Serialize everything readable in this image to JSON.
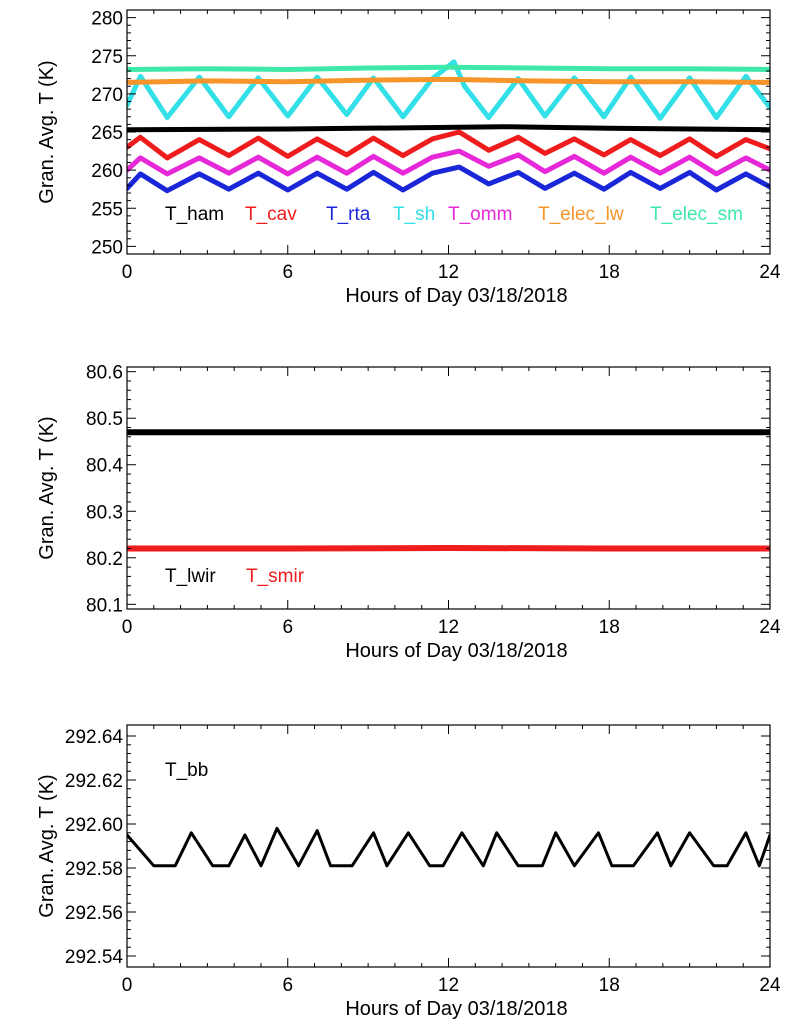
{
  "chart_data": [
    {
      "type": "line",
      "xlabel": "Hours of Day 03/18/2018",
      "ylabel": "Gran. Avg. T (K)",
      "xlim": [
        0,
        24
      ],
      "ylim": [
        249,
        281
      ],
      "xticks": [
        0,
        6,
        12,
        18,
        24
      ],
      "xtick_labels": [
        "0",
        "6",
        "12",
        "18",
        "24"
      ],
      "yticks": [
        250,
        255,
        260,
        265,
        270,
        275,
        280
      ],
      "ytick_labels": [
        "250",
        "255",
        "260",
        "265",
        "270",
        "275",
        "280"
      ],
      "legend_placement": "bottom inside plot, single row",
      "grid": false,
      "series": [
        {
          "name": "T_ham",
          "color": "#000000",
          "x": [
            0,
            6,
            12,
            14,
            18,
            24
          ],
          "y": [
            265.3,
            265.4,
            265.6,
            265.7,
            265.5,
            265.3
          ]
        },
        {
          "name": "T_cav",
          "color": "#ee1c1c",
          "x": [
            0,
            0.5,
            1.5,
            2.7,
            3.8,
            4.9,
            6.0,
            7.1,
            8.2,
            9.2,
            10.3,
            11.4,
            12.4,
            13.5,
            14.6,
            15.6,
            16.7,
            17.8,
            18.8,
            19.9,
            21.0,
            22.0,
            23.1,
            24
          ],
          "y": [
            263.0,
            264.3,
            261.6,
            264.0,
            261.9,
            264.2,
            261.8,
            264.1,
            262.0,
            264.2,
            261.9,
            264.1,
            265.0,
            262.6,
            264.3,
            262.2,
            264.1,
            262.0,
            264.0,
            261.9,
            264.1,
            261.8,
            264.0,
            262.8
          ]
        },
        {
          "name": "T_rta",
          "color": "#1a27d8",
          "x": [
            0,
            0.5,
            1.5,
            2.7,
            3.8,
            4.9,
            6.0,
            7.1,
            8.2,
            9.2,
            10.3,
            11.4,
            12.4,
            13.5,
            14.6,
            15.6,
            16.7,
            17.8,
            18.8,
            19.9,
            21.0,
            22.0,
            23.1,
            24
          ],
          "y": [
            257.6,
            259.5,
            257.3,
            259.5,
            257.5,
            259.6,
            257.4,
            259.6,
            257.5,
            259.7,
            257.4,
            259.6,
            260.4,
            258.2,
            259.7,
            257.6,
            259.6,
            257.5,
            259.7,
            257.6,
            259.7,
            257.4,
            259.5,
            257.8
          ]
        },
        {
          "name": "T_sh",
          "color": "#33e0e8",
          "x": [
            0,
            0.5,
            1.5,
            2.7,
            3.8,
            4.9,
            6.0,
            7.1,
            8.2,
            9.2,
            10.3,
            11.4,
            12.2,
            12.6,
            13.5,
            14.6,
            15.6,
            16.7,
            17.8,
            18.8,
            19.9,
            21.0,
            22.0,
            23.1,
            24
          ],
          "y": [
            268.5,
            272.3,
            266.9,
            272.2,
            267.0,
            272.1,
            267.1,
            272.2,
            267.3,
            272.1,
            267.0,
            272.0,
            274.2,
            271.0,
            266.9,
            272.0,
            267.1,
            272.1,
            267.0,
            272.2,
            266.8,
            272.1,
            266.9,
            272.3,
            268.2
          ]
        },
        {
          "name": "T_omm",
          "color": "#e628d8",
          "x": [
            0,
            0.5,
            1.5,
            2.7,
            3.8,
            4.9,
            6.0,
            7.1,
            8.2,
            9.2,
            10.3,
            11.4,
            12.4,
            13.5,
            14.6,
            15.6,
            16.7,
            17.8,
            18.8,
            19.9,
            21.0,
            22.0,
            23.1,
            24
          ],
          "y": [
            260.0,
            261.6,
            259.5,
            261.6,
            259.6,
            261.7,
            259.5,
            261.7,
            259.6,
            261.8,
            259.6,
            261.7,
            262.5,
            260.5,
            262.0,
            259.8,
            261.8,
            259.6,
            261.7,
            259.6,
            261.7,
            259.5,
            261.6,
            260.0
          ]
        },
        {
          "name": "T_elec_lw",
          "color": "#f7942a",
          "x": [
            0,
            3,
            6,
            9,
            12,
            15,
            18,
            21,
            24
          ],
          "y": [
            271.5,
            271.7,
            271.6,
            271.8,
            271.9,
            271.7,
            271.6,
            271.6,
            271.5
          ]
        },
        {
          "name": "T_elec_sm",
          "color": "#3de8a8",
          "x": [
            0,
            3,
            6,
            9,
            12,
            15,
            18,
            21,
            24
          ],
          "y": [
            273.2,
            273.3,
            273.2,
            273.4,
            273.5,
            273.4,
            273.3,
            273.3,
            273.2
          ]
        }
      ]
    },
    {
      "type": "line",
      "xlabel": "Hours of Day 03/18/2018",
      "ylabel": "Gran. Avg. T (K)",
      "xlim": [
        0,
        24
      ],
      "ylim": [
        80.09,
        80.61
      ],
      "xticks": [
        0,
        6,
        12,
        18,
        24
      ],
      "xtick_labels": [
        "0",
        "6",
        "12",
        "18",
        "24"
      ],
      "yticks": [
        80.1,
        80.2,
        80.3,
        80.4,
        80.5,
        80.6
      ],
      "ytick_labels": [
        "80.1",
        "80.2",
        "80.3",
        "80.4",
        "80.5",
        "80.6"
      ],
      "legend_placement": "bottom-left inside plot, single row",
      "grid": false,
      "series": [
        {
          "name": "T_lwir",
          "color": "#000000",
          "x": [
            0,
            24
          ],
          "y": [
            80.47,
            80.47
          ]
        },
        {
          "name": "T_smir",
          "color": "#ee1c1c",
          "x": [
            0,
            6,
            12,
            18,
            24
          ],
          "y": [
            80.22,
            80.22,
            80.221,
            80.22,
            80.22
          ]
        }
      ]
    },
    {
      "type": "line",
      "xlabel": "Hours of Day 03/18/2018",
      "ylabel": "Gran. Avg. T (K)",
      "xlim": [
        0,
        24
      ],
      "ylim": [
        292.535,
        292.645
      ],
      "xticks": [
        0,
        6,
        12,
        18,
        24
      ],
      "xtick_labels": [
        "0",
        "6",
        "12",
        "18",
        "24"
      ],
      "yticks": [
        292.54,
        292.56,
        292.58,
        292.6,
        292.62,
        292.64
      ],
      "ytick_labels": [
        "292.54",
        "292.56",
        "292.58",
        "292.60",
        "292.62",
        "292.64"
      ],
      "legend_placement": "top-left inside plot",
      "grid": false,
      "series": [
        {
          "name": "T_bb",
          "color": "#000000",
          "x": [
            0,
            0.5,
            1.0,
            1.8,
            2.4,
            3.2,
            3.8,
            4.4,
            5.0,
            5.6,
            6.4,
            7.1,
            7.6,
            8.4,
            9.2,
            9.7,
            10.5,
            11.3,
            11.8,
            12.5,
            13.3,
            13.8,
            14.6,
            15.5,
            16.0,
            16.7,
            17.6,
            18.1,
            18.9,
            19.8,
            20.3,
            21.0,
            21.9,
            22.4,
            23.1,
            23.6,
            24
          ],
          "y": [
            292.595,
            292.588,
            292.581,
            292.581,
            292.596,
            292.581,
            292.581,
            292.595,
            292.581,
            292.598,
            292.581,
            292.597,
            292.581,
            292.581,
            292.596,
            292.581,
            292.596,
            292.581,
            292.581,
            292.596,
            292.581,
            292.596,
            292.581,
            292.581,
            292.596,
            292.581,
            292.596,
            292.581,
            292.581,
            292.596,
            292.581,
            292.596,
            292.581,
            292.581,
            292.596,
            292.581,
            292.595
          ]
        }
      ]
    }
  ]
}
